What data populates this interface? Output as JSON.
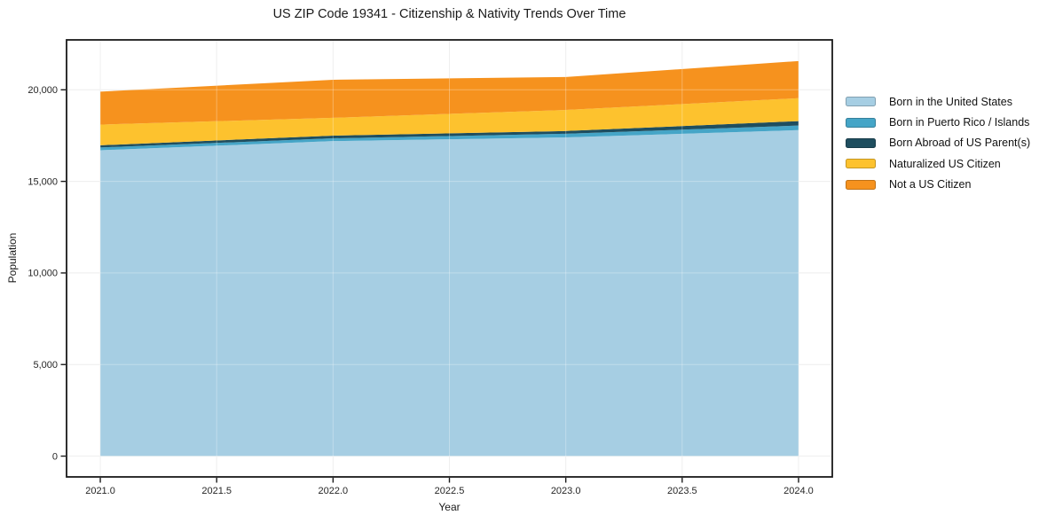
{
  "chart_data": {
    "type": "area",
    "stacked": true,
    "title": "US ZIP Code 19341 - Citizenship & Nativity Trends Over Time",
    "xlabel": "Year",
    "ylabel": "Population",
    "x": [
      2021,
      2022,
      2023,
      2024
    ],
    "series": [
      {
        "name": "Born in the United States",
        "color": "#a6cee3",
        "values": [
          16700,
          17200,
          17400,
          17800
        ]
      },
      {
        "name": "Born in Puerto Rico / Islands",
        "color": "#45a5c7",
        "values": [
          150,
          150,
          200,
          250
        ]
      },
      {
        "name": "Born Abroad of US Parent(s)",
        "color": "#1f4e5f",
        "values": [
          120,
          150,
          150,
          240
        ]
      },
      {
        "name": "Naturalized US Citizen",
        "color": "#fdc22e",
        "values": [
          1130,
          970,
          1150,
          1250
        ]
      },
      {
        "name": "Not a US Citizen",
        "color": "#f6921e",
        "values": [
          1800,
          2080,
          1800,
          2030
        ]
      }
    ],
    "stacked_totals": [
      19900,
      20550,
      20700,
      21570
    ],
    "xticks": [
      2021.0,
      2021.5,
      2022.0,
      2022.5,
      2023.0,
      2023.5,
      2024.0
    ],
    "xtick_labels": [
      "2021.0",
      "2021.5",
      "2022.0",
      "2022.5",
      "2023.0",
      "2023.5",
      "2024.0"
    ],
    "yticks": [
      0,
      5000,
      10000,
      15000,
      20000
    ],
    "ytick_labels": [
      "0",
      "5,000",
      "10,000",
      "15,000",
      "20,000"
    ],
    "xlim": [
      2020.855,
      2024.145
    ],
    "ylim": [
      -1135,
      22725
    ],
    "grid": true,
    "legend_position": "right-outside",
    "colors": {
      "frame": "#1a1a1a",
      "grid": "#e9e9e9",
      "grid_overlay": "rgba(255,255,255,0.3)",
      "text": "#262626",
      "background": "#ffffff"
    }
  }
}
